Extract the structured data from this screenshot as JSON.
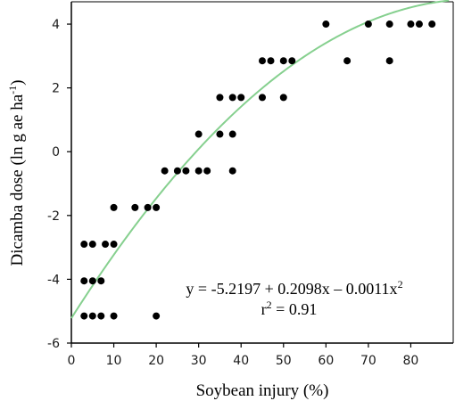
{
  "chart_data": {
    "type": "scatter",
    "title": "",
    "xlabel": "Soybean injury (%)",
    "ylabel": {
      "prefix": "Dicamba dose (ln g ae ha",
      "sup": "-1",
      "suffix": ")"
    },
    "xlim": [
      0,
      90
    ],
    "ylim": [
      -6,
      4.7
    ],
    "xticks": [
      0,
      10,
      20,
      30,
      40,
      50,
      60,
      70,
      80
    ],
    "yticks": [
      -6,
      -4,
      -2,
      0,
      2,
      4
    ],
    "grid": false,
    "legend": "none",
    "points": [
      {
        "x": 3,
        "y": -5.15
      },
      {
        "x": 5,
        "y": -5.15
      },
      {
        "x": 7,
        "y": -5.15
      },
      {
        "x": 10,
        "y": -5.15
      },
      {
        "x": 20,
        "y": -5.15
      },
      {
        "x": 3,
        "y": -4.05
      },
      {
        "x": 5,
        "y": -4.05
      },
      {
        "x": 7,
        "y": -4.05
      },
      {
        "x": 3,
        "y": -2.9
      },
      {
        "x": 5,
        "y": -2.9
      },
      {
        "x": 8,
        "y": -2.9
      },
      {
        "x": 10,
        "y": -2.9
      },
      {
        "x": 10,
        "y": -1.75
      },
      {
        "x": 15,
        "y": -1.75
      },
      {
        "x": 18,
        "y": -1.75
      },
      {
        "x": 20,
        "y": -1.75
      },
      {
        "x": 22,
        "y": -0.6
      },
      {
        "x": 25,
        "y": -0.6
      },
      {
        "x": 27,
        "y": -0.6
      },
      {
        "x": 30,
        "y": -0.6
      },
      {
        "x": 32,
        "y": -0.6
      },
      {
        "x": 38,
        "y": -0.6
      },
      {
        "x": 30,
        "y": 0.55
      },
      {
        "x": 35,
        "y": 0.55
      },
      {
        "x": 38,
        "y": 0.55
      },
      {
        "x": 35,
        "y": 1.7
      },
      {
        "x": 38,
        "y": 1.7
      },
      {
        "x": 40,
        "y": 1.7
      },
      {
        "x": 45,
        "y": 1.7
      },
      {
        "x": 50,
        "y": 1.7
      },
      {
        "x": 45,
        "y": 2.85
      },
      {
        "x": 47,
        "y": 2.85
      },
      {
        "x": 50,
        "y": 2.85
      },
      {
        "x": 52,
        "y": 2.85
      },
      {
        "x": 65,
        "y": 2.85
      },
      {
        "x": 75,
        "y": 2.85
      },
      {
        "x": 60,
        "y": 4.0
      },
      {
        "x": 70,
        "y": 4.0
      },
      {
        "x": 75,
        "y": 4.0
      },
      {
        "x": 80,
        "y": 4.0
      },
      {
        "x": 82,
        "y": 4.0
      },
      {
        "x": 85,
        "y": 4.0
      }
    ],
    "fit": {
      "model": "quadratic",
      "intercept": -5.2197,
      "linear": 0.2098,
      "quadratic": -0.0011,
      "x_range": [
        0,
        89
      ],
      "color": "#86d08f"
    },
    "marker_color": "#000000",
    "annotation": {
      "equation": {
        "text": "y = -5.2197 + 0.2098x – 0.0011x",
        "sup": "2"
      },
      "r2": {
        "prefix": "r",
        "sup": "2",
        "suffix": " = 0.91"
      }
    }
  }
}
